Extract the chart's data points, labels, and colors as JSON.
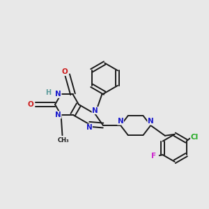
{
  "bg_color": "#e8e8e8",
  "fig_size": [
    3.0,
    3.0
  ],
  "dpi": 100,
  "bond_color": "#1a1a1a",
  "N_color": "#1a1acc",
  "O_color": "#cc1a1a",
  "Cl_color": "#22aa22",
  "F_color": "#cc22cc",
  "H_color": "#5a9a9a",
  "xlim": [
    0.0,
    3.0
  ],
  "ylim": [
    0.0,
    3.0
  ]
}
